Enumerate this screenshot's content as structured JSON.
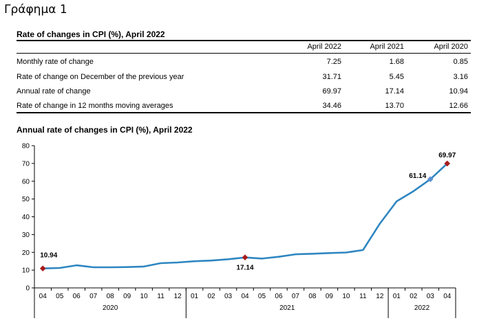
{
  "heading": "Γράφημα 1",
  "table": {
    "title": "Rate of changes in CPI (%), April 2022",
    "columns": [
      "April 2022",
      "April 2021",
      "April 2020"
    ],
    "rows": [
      {
        "label": "Monthly rate of change",
        "values": [
          "7.25",
          "1.68",
          "0.85"
        ]
      },
      {
        "label": "Rate of change on December of the previous year",
        "values": [
          "31.71",
          "5.45",
          "3.16"
        ]
      },
      {
        "label": "Annual rate of change",
        "values": [
          "69.97",
          "17.14",
          "10.94"
        ]
      },
      {
        "label": "Rate of change in 12 months moving averages",
        "values": [
          "34.46",
          "13.70",
          "12.66"
        ]
      }
    ]
  },
  "chart_data": {
    "type": "line",
    "title": "Annual rate of changes in CPI (%), April 2022",
    "ylim": [
      0,
      80
    ],
    "yticks": [
      0,
      10,
      20,
      30,
      40,
      50,
      60,
      70,
      80
    ],
    "x": [
      "04",
      "05",
      "06",
      "07",
      "08",
      "09",
      "10",
      "11",
      "12",
      "01",
      "02",
      "03",
      "04",
      "05",
      "06",
      "07",
      "08",
      "09",
      "10",
      "11",
      "12",
      "01",
      "02",
      "03",
      "04"
    ],
    "year_groups": [
      {
        "label": "2020",
        "count": 9
      },
      {
        "label": "2021",
        "count": 12
      },
      {
        "label": "2022",
        "count": 4
      }
    ],
    "series": [
      {
        "values": [
          10.94,
          11.2,
          12.7,
          11.6,
          11.6,
          11.7,
          12.0,
          13.9,
          14.3,
          15.0,
          15.4,
          16.1,
          17.14,
          16.5,
          17.5,
          18.9,
          19.2,
          19.6,
          19.9,
          21.3,
          36.1,
          48.7,
          54.4,
          61.14,
          69.97
        ],
        "color": "#2e86c1"
      }
    ],
    "highlights": [
      {
        "index": 0,
        "label": "10.94",
        "color": "#a61c1c"
      },
      {
        "index": 12,
        "label": "17.14",
        "color": "#a61c1c"
      },
      {
        "index": 23,
        "label": "61.14",
        "color": "#5b8fd1"
      },
      {
        "index": 24,
        "label": "69.97",
        "color": "#a61c1c"
      }
    ],
    "grid": false
  }
}
